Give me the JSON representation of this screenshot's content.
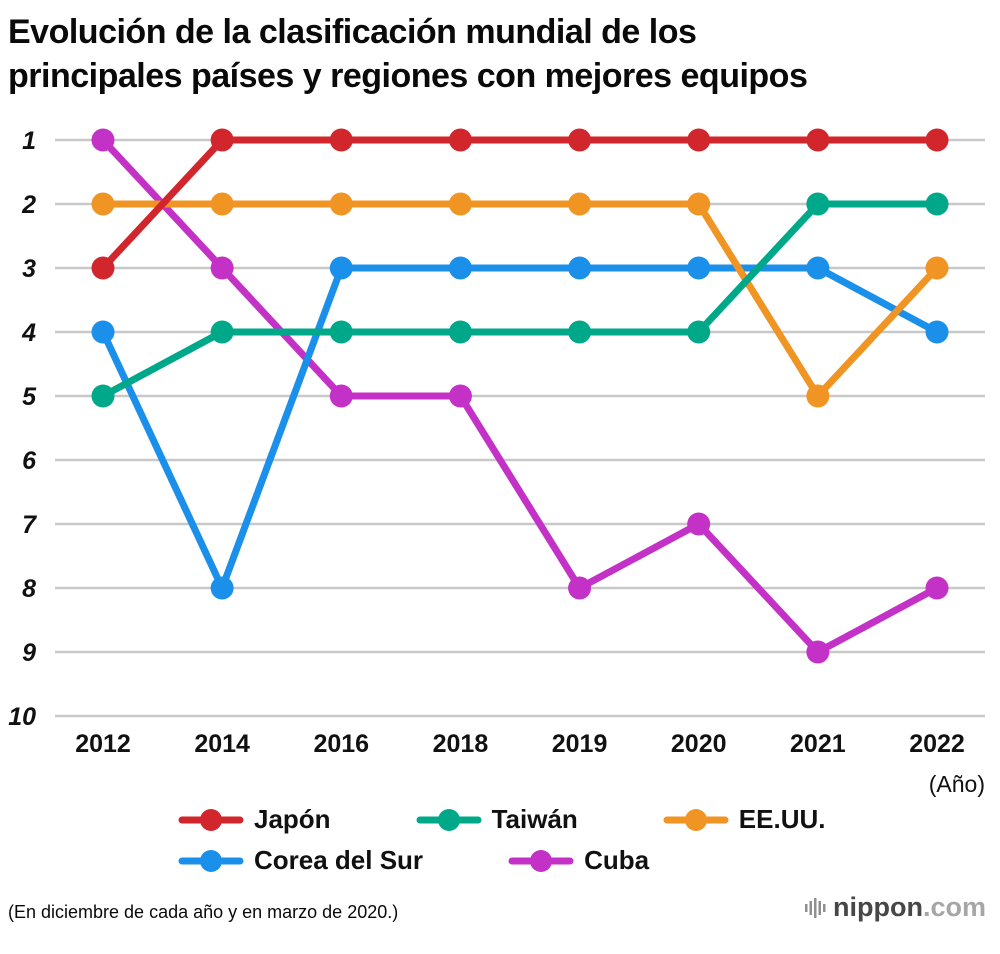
{
  "title_lines": [
    "Evolución de la clasificación mundial de los",
    "principales países y regiones con mejores equipos"
  ],
  "footnote": "(En diciembre de cada año y en marzo de 2020.)",
  "logo": {
    "name": "nippon",
    "suffix": ".com"
  },
  "chart_data": {
    "type": "line",
    "title": "Evolución de la clasificación mundial de los principales países y regiones con mejores equipos",
    "x_axis_note": "(Año)",
    "categories": [
      "2012",
      "2014",
      "2016",
      "2018",
      "2019",
      "2020",
      "2021",
      "2022"
    ],
    "y_ticks": [
      1,
      2,
      3,
      4,
      5,
      6,
      7,
      8,
      9,
      10
    ],
    "ylim": [
      1,
      10
    ],
    "y_inverted": true,
    "grid": true,
    "grid_color": "#c8c8c8",
    "legend_position": "bottom",
    "series": [
      {
        "id": "japon",
        "name": "Japón",
        "color": "#d2262d",
        "values": [
          3,
          1,
          1,
          1,
          1,
          1,
          1,
          1
        ]
      },
      {
        "id": "taiwan",
        "name": "Taiwán",
        "color": "#00a88a",
        "values": [
          5,
          4,
          4,
          4,
          4,
          4,
          2,
          2
        ]
      },
      {
        "id": "eeuu",
        "name": "EE.UU.",
        "color": "#f09424",
        "values": [
          2,
          2,
          2,
          2,
          2,
          2,
          5,
          3
        ]
      },
      {
        "id": "corea-del-sur",
        "name": "Corea del Sur",
        "color": "#1b90ea",
        "values": [
          4,
          8,
          3,
          3,
          3,
          3,
          3,
          4
        ]
      },
      {
        "id": "cuba",
        "name": "Cuba",
        "color": "#c331c6",
        "values": [
          1,
          3,
          5,
          5,
          8,
          7,
          9,
          8
        ]
      }
    ],
    "draw_order": [
      4,
      3,
      2,
      1,
      0
    ]
  }
}
